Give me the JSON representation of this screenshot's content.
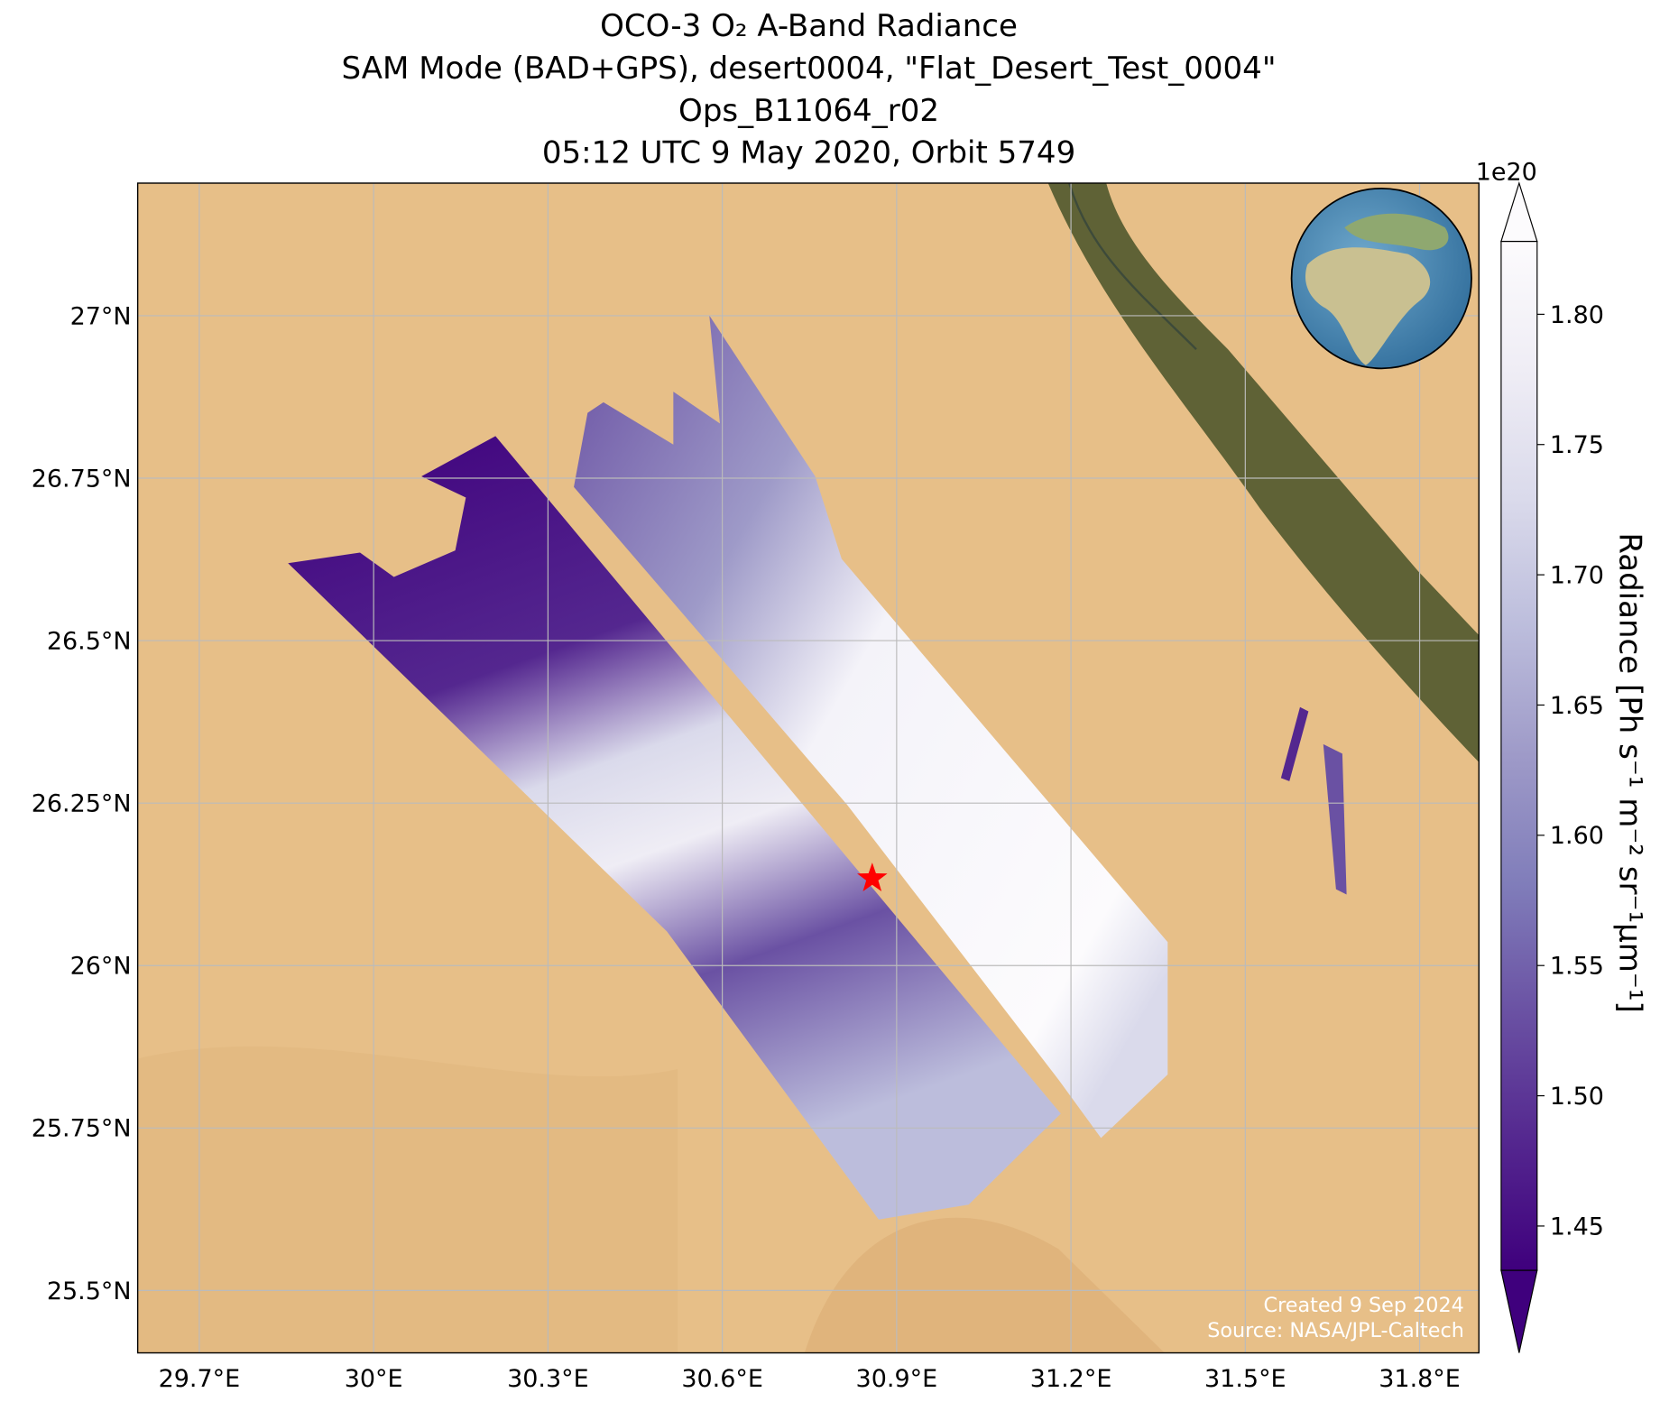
{
  "chart_data": {
    "type": "map",
    "title": [
      "OCO-3 O₂ A-Band Radiance",
      "SAM Mode (BAD+GPS), desert0004, \"Flat_Desert_Test_0004\"",
      "Ops_B11064_r02",
      "05:12 UTC 9 May 2020, Orbit 5749"
    ],
    "xlim": [
      29.594,
      31.902
    ],
    "ylim": [
      25.404,
      27.204
    ],
    "xticks": [
      {
        "value": 29.7,
        "label": "29.7°E"
      },
      {
        "value": 30.0,
        "label": "30°E"
      },
      {
        "value": 30.3,
        "label": "30.3°E"
      },
      {
        "value": 30.6,
        "label": "30.6°E"
      },
      {
        "value": 30.9,
        "label": "30.9°E"
      },
      {
        "value": 31.2,
        "label": "31.2°E"
      },
      {
        "value": 31.5,
        "label": "31.5°E"
      },
      {
        "value": 31.8,
        "label": "31.8°E"
      }
    ],
    "yticks": [
      {
        "value": 25.5,
        "label": "25.5°N"
      },
      {
        "value": 25.75,
        "label": "25.75°N"
      },
      {
        "value": 26.0,
        "label": "26°N"
      },
      {
        "value": 26.25,
        "label": "26.25°N"
      },
      {
        "value": 26.5,
        "label": "26.5°N"
      },
      {
        "value": 26.75,
        "label": "26.75°N"
      },
      {
        "value": 27.0,
        "label": "27°N"
      }
    ],
    "grid": true,
    "target": {
      "lon": 30.858,
      "lat": 26.134,
      "color": "#ff0000"
    },
    "colorbar": {
      "label": "Radiance [Ph s⁻¹ m⁻² sr⁻¹μm⁻¹]",
      "multiplier": "1e20",
      "lim": [
        1.433,
        1.828
      ],
      "ticks": [
        1.45,
        {
          "value": 1.5,
          "label": "1.50"
        },
        1.55,
        {
          "value": 1.6,
          "label": "1.60"
        },
        1.65,
        {
          "value": 1.7,
          "label": "1.70"
        },
        1.75,
        {
          "value": 1.8,
          "label": "1.80"
        }
      ],
      "colors": [
        "#3f007d",
        "#54278f",
        "#6a51a3",
        "#807dba",
        "#9e9ac8",
        "#bcbddc",
        "#dadaeb",
        "#efedf5",
        "#fcfbfd"
      ]
    },
    "credits": [
      "Created 9 Sep 2024",
      "Source: NASA/JPL-Caltech"
    ]
  }
}
